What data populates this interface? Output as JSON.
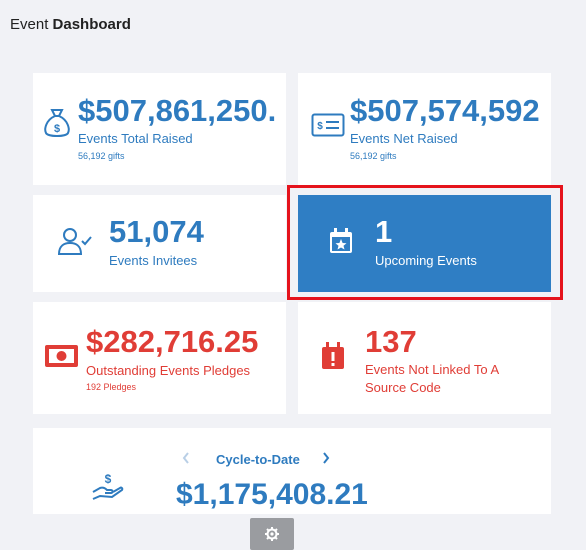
{
  "header": {
    "title_light": "Event",
    "title_bold": "Dashboard"
  },
  "cards": {
    "total_raised": {
      "value": "$507,861,250.",
      "label": "Events Total Raised",
      "sub": "56,192 gifts",
      "icon": "money-bag-icon"
    },
    "net_raised": {
      "value": "$507,574,592",
      "label": "Events Net Raised",
      "sub": "56,192 gifts",
      "icon": "check-bill-icon"
    },
    "invitees": {
      "value": "51,074",
      "label": "Events Invitees",
      "icon": "user-check-icon"
    },
    "upcoming": {
      "value": "1",
      "label": "Upcoming Events",
      "icon": "calendar-star-icon"
    },
    "pledges": {
      "value": "$282,716.25",
      "label": "Outstanding Events Pledges",
      "sub": "192 Pledges",
      "icon": "banknote-icon"
    },
    "not_linked": {
      "value": "137",
      "label_line1": "Events Not Linked To A",
      "label_line2": "Source Code",
      "icon": "calendar-alert-icon"
    },
    "cycle": {
      "period": "Cycle-to-Date",
      "value": "$1,175,408.21",
      "icon": "hand-dollar-icon"
    }
  },
  "colors": {
    "blue": "#2e7bbf",
    "red": "#e03d36",
    "card_active": "#2f7ec4",
    "highlight": "#e5131c"
  },
  "footer": {
    "icon": "gear-icon"
  }
}
